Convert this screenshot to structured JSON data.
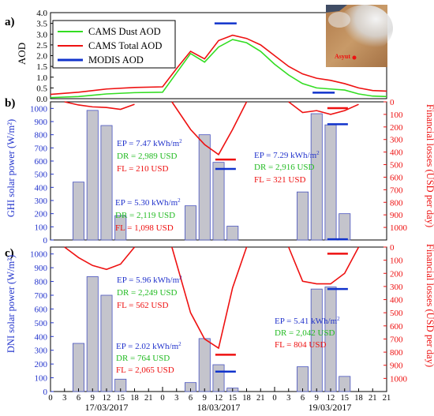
{
  "panel_a": {
    "tag": "a)",
    "ylabel": "AOD",
    "legend": [
      "CAMS Dust AOD",
      "CAMS Total AOD",
      "MODIS AOD"
    ],
    "map_label": "Asyut"
  },
  "panel_b": {
    "tag": "b)",
    "ylabel": "GHI solar power (W/m²)",
    "y2label": "Financial losses (USD per day)"
  },
  "panel_c": {
    "tag": "c)",
    "ylabel": "DNI solar power (W/m²)",
    "y2label": "Financial losses (USD per day)"
  },
  "dates": [
    "17/03/2017",
    "18/03/2017",
    "19/03/2017"
  ],
  "x_ticks": [
    "0",
    "3",
    "6",
    "9",
    "12",
    "15",
    "18",
    "21",
    "0",
    "3",
    "6",
    "9",
    "12",
    "15",
    "18",
    "21",
    "0",
    "3",
    "6",
    "9",
    "12",
    "15",
    "18",
    "21"
  ],
  "colors": {
    "dust": "#33dd22",
    "total": "#ee1111",
    "modis": "#1133cc",
    "bar_fill": "#c4c4cc",
    "bar_stroke": "#4a55c0",
    "ep": "#2233cc",
    "dr": "#22bb22",
    "fl": "#ee1111",
    "axis_left": "#2233cc",
    "axis_right": "#ee1111"
  },
  "chart_data": [
    {
      "type": "line",
      "title": "",
      "xlabel": "",
      "ylabel": "AOD",
      "ylim": [
        0,
        4.0
      ],
      "yticks": [
        "0.0",
        "0.5",
        "1.0",
        "1.5",
        "2.0",
        "2.5",
        "3.0",
        "3.5",
        "4.0"
      ],
      "x_unit": "hours from 17/03/2017 00:00",
      "series": [
        {
          "name": "CAMS Dust AOD",
          "x": [
            0,
            6,
            12,
            18,
            24,
            27,
            30,
            33,
            36,
            39,
            42,
            45,
            48,
            51,
            54,
            57,
            60,
            63,
            66,
            69,
            72
          ],
          "values": [
            0.05,
            0.1,
            0.22,
            0.28,
            0.3,
            1.2,
            2.1,
            1.7,
            2.4,
            2.75,
            2.6,
            2.2,
            1.6,
            1.1,
            0.7,
            0.5,
            0.45,
            0.4,
            0.22,
            0.12,
            0.1
          ]
        },
        {
          "name": "CAMS Total AOD",
          "x": [
            0,
            6,
            12,
            18,
            24,
            27,
            30,
            33,
            36,
            39,
            42,
            45,
            48,
            51,
            54,
            57,
            60,
            63,
            66,
            69,
            72
          ],
          "values": [
            0.2,
            0.3,
            0.45,
            0.52,
            0.55,
            1.4,
            2.2,
            1.85,
            2.7,
            2.95,
            2.8,
            2.5,
            2.0,
            1.5,
            1.15,
            0.95,
            0.85,
            0.7,
            0.5,
            0.38,
            0.35
          ]
        },
        {
          "name": "MODIS AOD",
          "type": "segments",
          "points": [
            {
              "x": 37.5,
              "y": 3.5
            },
            {
              "x": 58.5,
              "y": 0.28
            }
          ]
        }
      ]
    },
    {
      "type": "bar",
      "ylabel": "GHI solar power (W/m²)",
      "y2label": "Financial losses (USD per day)",
      "ylim": [
        0,
        1050
      ],
      "y2lim": [
        1100,
        0
      ],
      "yticks": [
        "0",
        "100",
        "200",
        "300",
        "400",
        "500",
        "600",
        "700",
        "800",
        "900",
        "1000"
      ],
      "y2ticks": [
        "0",
        "100",
        "200",
        "300",
        "400",
        "500",
        "600",
        "700",
        "800",
        "900",
        "1000"
      ],
      "bars": {
        "x": [
          6,
          9,
          12,
          15,
          30,
          33,
          36,
          39,
          54,
          57,
          60,
          63
        ],
        "values": [
          440,
          985,
          870,
          185,
          260,
          800,
          590,
          105,
          365,
          960,
          875,
          200
        ]
      },
      "losses_line": [
        {
          "x": [
            3,
            6,
            9,
            12,
            15,
            18
          ],
          "values": [
            0,
            25,
            40,
            45,
            60,
            20
          ]
        },
        {
          "x": [
            26,
            30,
            33,
            36,
            39,
            42
          ],
          "values": [
            0,
            220,
            340,
            420,
            220,
            0
          ]
        },
        {
          "x": [
            51,
            54,
            57,
            60,
            63,
            66
          ],
          "values": [
            0,
            85,
            70,
            100,
            70,
            20
          ]
        }
      ],
      "markers": [
        {
          "series": "MODIS",
          "x": 37.5,
          "value": 540
        },
        {
          "series": "MODIS",
          "x": 61.5,
          "value": 880
        },
        {
          "series": "Losses",
          "x": 37.5,
          "value": 460
        },
        {
          "series": "Losses",
          "x": 61.5,
          "value": 50
        },
        {
          "series": "MODIS",
          "x": 61.5,
          "value": 5
        }
      ],
      "annotations": [
        {
          "ep": "EP = 7.47 kWh/m",
          "dr": "DR = 2,989 USD",
          "fl": "FL = 210 USD"
        },
        {
          "ep": "EP = 5.30 kWh/m",
          "dr": "DR = 2,119 USD",
          "fl": "FL = 1,098 USD"
        },
        {
          "ep": "EP = 7.29 kWh/m",
          "dr": "DR = 2,916 USD",
          "fl": "FL = 321 USD"
        }
      ]
    },
    {
      "type": "bar",
      "ylabel": "DNI solar power (W/m²)",
      "y2label": "Financial losses (USD per day)",
      "ylim": [
        0,
        1050
      ],
      "y2lim": [
        1100,
        0
      ],
      "yticks": [
        "0",
        "100",
        "200",
        "300",
        "400",
        "500",
        "600",
        "700",
        "800",
        "900",
        "1000"
      ],
      "y2ticks": [
        "0",
        "100",
        "200",
        "300",
        "400",
        "500",
        "600",
        "700",
        "800",
        "900",
        "1000"
      ],
      "bars": {
        "x": [
          6,
          9,
          12,
          15,
          30,
          33,
          36,
          39,
          54,
          57,
          60,
          63
        ],
        "values": [
          350,
          835,
          700,
          90,
          65,
          385,
          195,
          25,
          180,
          745,
          760,
          110
        ]
      },
      "losses_line": [
        {
          "x": [
            3,
            6,
            9,
            12,
            15,
            18
          ],
          "values": [
            0,
            80,
            140,
            170,
            130,
            0
          ]
        },
        {
          "x": [
            26,
            30,
            33,
            36,
            39,
            42
          ],
          "values": [
            0,
            500,
            700,
            770,
            310,
            0
          ]
        },
        {
          "x": [
            51,
            54,
            57,
            60,
            63,
            66
          ],
          "values": [
            0,
            260,
            280,
            280,
            200,
            0
          ]
        }
      ],
      "markers": [
        {
          "series": "MODIS",
          "x": 37.5,
          "value": 145
        },
        {
          "series": "MODIS",
          "x": 61.5,
          "value": 745
        },
        {
          "series": "Losses",
          "x": 37.5,
          "value": 820
        },
        {
          "series": "Losses",
          "x": 61.5,
          "value": 50
        }
      ],
      "annotations": [
        {
          "ep": "EP = 5.96 kWh/m",
          "dr": "DR = 2,249 USD",
          "fl": "FL = 562 USD"
        },
        {
          "ep": "EP = 2.02 kWh/m",
          "dr": "DR = 764 USD",
          "fl": "FL = 2,065 USD"
        },
        {
          "ep": "EP = 5.41 kWh/m",
          "dr": "DR = 2,042 USD",
          "fl": "FL = 804 USD"
        }
      ]
    }
  ]
}
